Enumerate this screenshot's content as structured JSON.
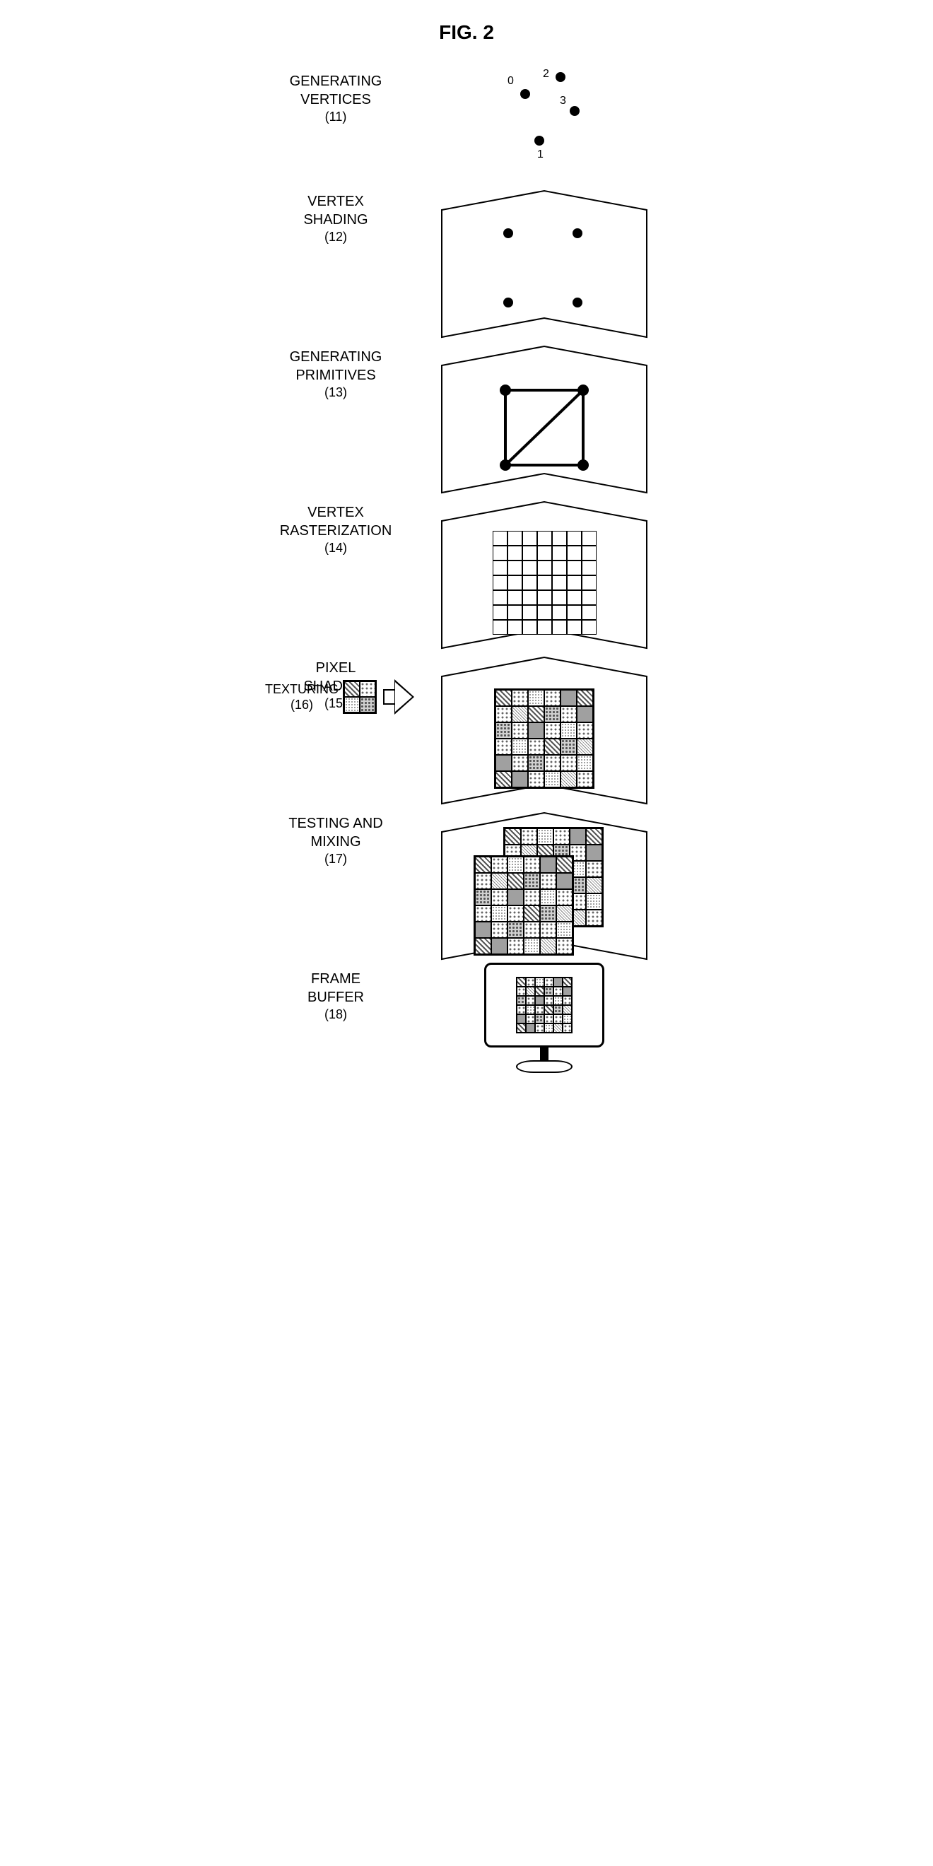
{
  "figure_title": "FIG. 2",
  "stages": {
    "s1": {
      "line1": "GENERATING",
      "line2": "VERTICES",
      "num": "(11)"
    },
    "s2": {
      "line1": "VERTEX",
      "line2": "SHADING",
      "num": "(12)"
    },
    "s3": {
      "line1": "GENERATING",
      "line2": "PRIMITIVES",
      "num": "(13)"
    },
    "s4": {
      "line1": "VERTEX",
      "line2": "RASTERIZATION",
      "num": "(14)"
    },
    "s5": {
      "line1": "PIXEL",
      "line2": "SHADING",
      "num": "(15)"
    },
    "s6": {
      "line1": "TEXTURING",
      "num": "(16)"
    },
    "s7": {
      "line1": "TESTING AND",
      "line2": "MIXING",
      "num": "(17)"
    },
    "s8": {
      "line1": "FRAME",
      "line2": "BUFFER",
      "num": "(18)"
    }
  },
  "vertex_labels": [
    "0",
    "1",
    "2",
    "3"
  ],
  "colors": {
    "stroke": "#000000",
    "background": "#ffffff"
  },
  "pattern_matrix_6x6": [
    [
      "diag",
      "dot",
      "dust",
      "dot",
      "gray",
      "diag"
    ],
    [
      "dot",
      "cross",
      "diag",
      "dense",
      "dot",
      "gray"
    ],
    [
      "dense",
      "dot",
      "gray",
      "dot",
      "dust",
      "dot"
    ],
    [
      "dot",
      "dust",
      "dot",
      "diag",
      "dense",
      "cross"
    ],
    [
      "gray",
      "dot",
      "dense",
      "dot",
      "dot",
      "dust"
    ],
    [
      "diag",
      "gray",
      "dot",
      "dust",
      "cross",
      "dot"
    ]
  ],
  "texture_2x2": [
    "diag",
    "dot",
    "dust",
    "dense"
  ],
  "diagram_type": "pipeline-flowchart",
  "orientation": "vertical"
}
